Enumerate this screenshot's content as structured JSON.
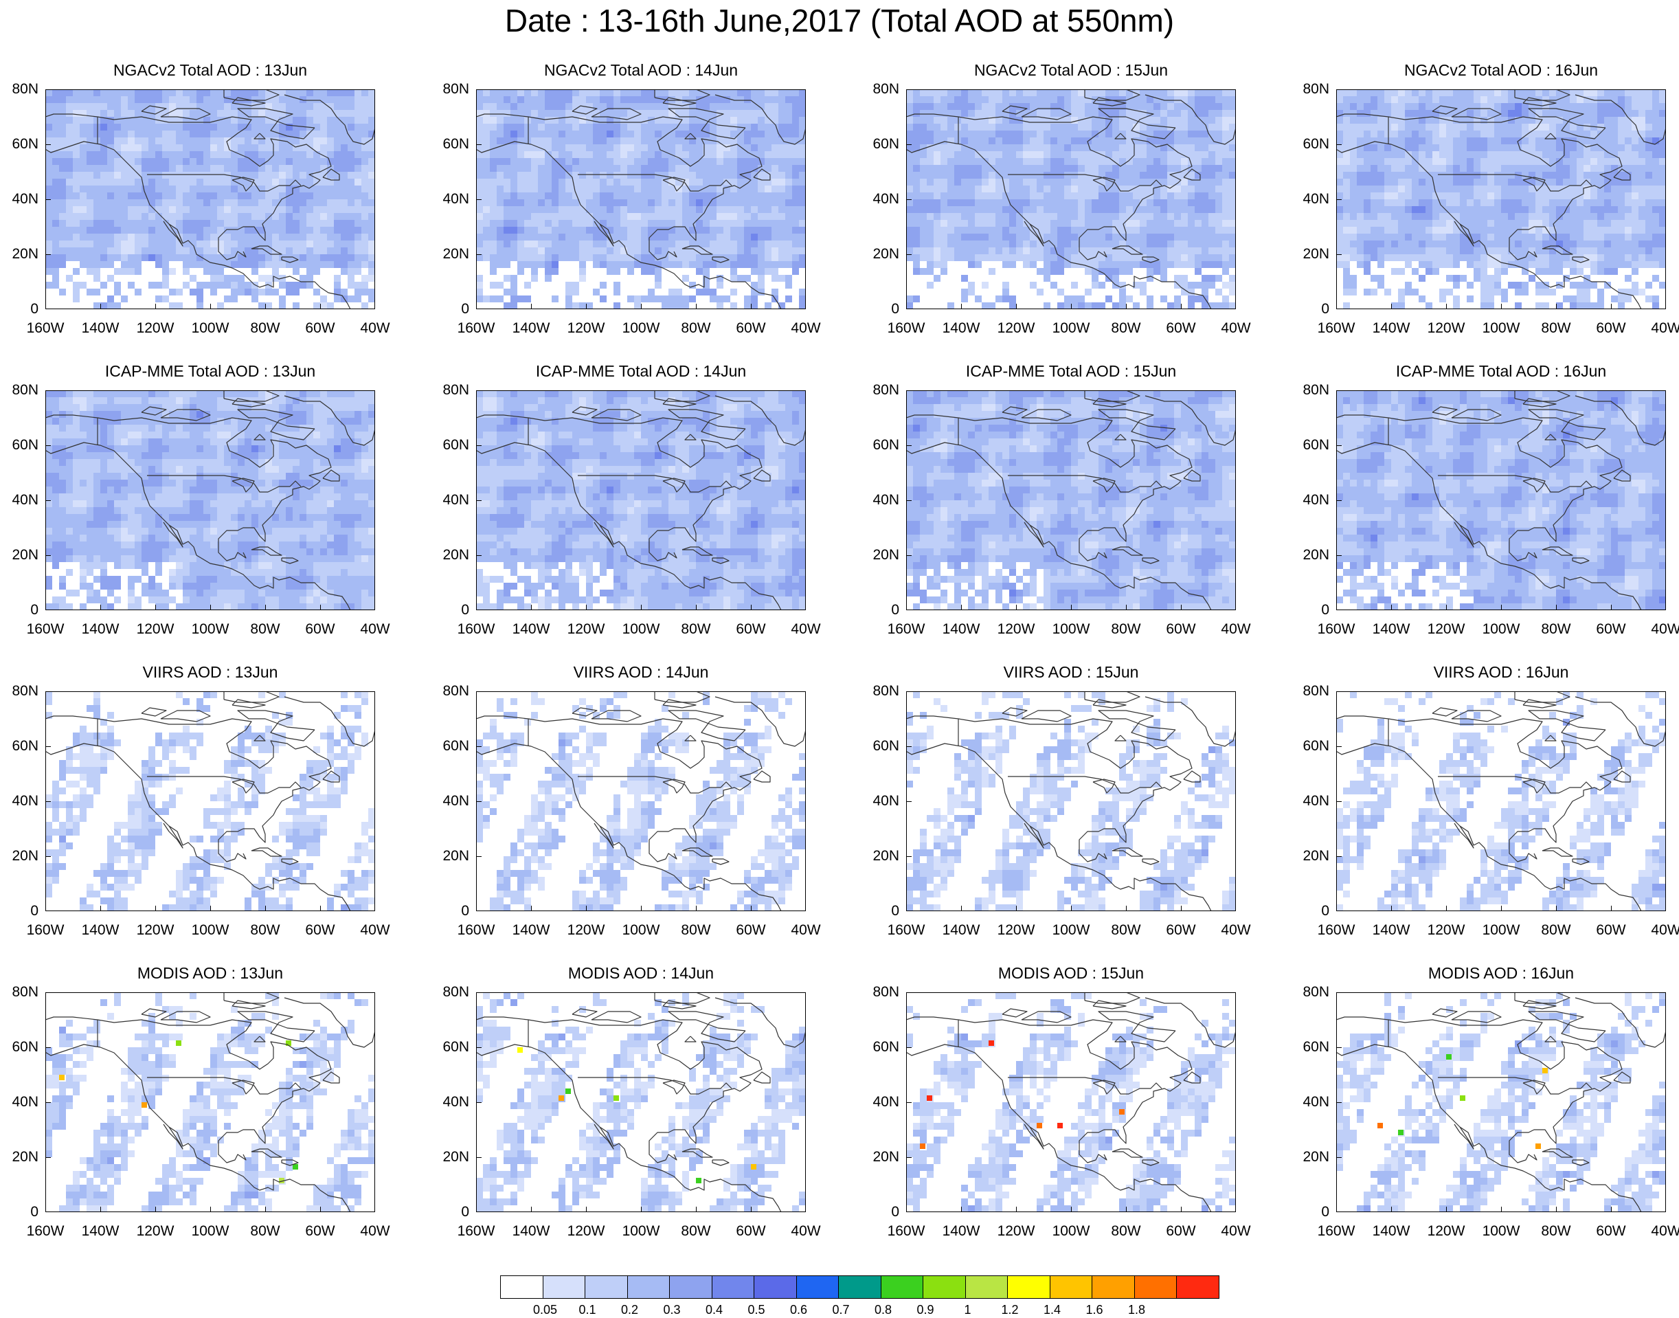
{
  "title": "Date : 13-16th June,2017 (Total AOD at 550nm)",
  "axes": {
    "lat_labels": [
      "0",
      "20N",
      "40N",
      "60N",
      "80N"
    ],
    "lon_labels": [
      "160W",
      "140W",
      "120W",
      "100W",
      "80W",
      "60W",
      "40W"
    ],
    "lat_range": [
      0,
      80
    ],
    "lon_range": [
      -160,
      -40
    ]
  },
  "rows": [
    {
      "product": "NGACv2 Total AOD",
      "field": "model",
      "coverage": "full",
      "base_level": 3
    },
    {
      "product": "ICAP-MME Total AOD",
      "field": "model",
      "coverage": "full",
      "base_level": 3
    },
    {
      "product": "VIIRS AOD",
      "field": "satellite",
      "coverage": "swaths",
      "base_level": 2
    },
    {
      "product": "MODIS AOD",
      "field": "satellite",
      "coverage": "swaths",
      "base_level": 2
    }
  ],
  "panels": [
    {
      "title": "NGACv2 Total AOD : 13Jun",
      "row": 0,
      "col": 0
    },
    {
      "title": "NGACv2 Total AOD : 14Jun",
      "row": 0,
      "col": 1
    },
    {
      "title": "NGACv2 Total AOD : 15Jun",
      "row": 0,
      "col": 2
    },
    {
      "title": "NGACv2 Total AOD : 16Jun",
      "row": 0,
      "col": 3
    },
    {
      "title": "ICAP-MME Total AOD : 13Jun",
      "row": 1,
      "col": 0
    },
    {
      "title": "ICAP-MME Total AOD : 14Jun",
      "row": 1,
      "col": 1
    },
    {
      "title": "ICAP-MME Total AOD : 15Jun",
      "row": 1,
      "col": 2
    },
    {
      "title": "ICAP-MME Total AOD : 16Jun",
      "row": 1,
      "col": 3
    },
    {
      "title": "VIIRS AOD : 13Jun",
      "row": 2,
      "col": 0
    },
    {
      "title": "VIIRS AOD : 14Jun",
      "row": 2,
      "col": 1
    },
    {
      "title": "VIIRS AOD : 15Jun",
      "row": 2,
      "col": 2
    },
    {
      "title": "VIIRS AOD : 16Jun",
      "row": 2,
      "col": 3
    },
    {
      "title": "MODIS AOD : 13Jun",
      "row": 3,
      "col": 0
    },
    {
      "title": "MODIS AOD : 14Jun",
      "row": 3,
      "col": 1
    },
    {
      "title": "MODIS AOD : 15Jun",
      "row": 3,
      "col": 2
    },
    {
      "title": "MODIS AOD : 16Jun",
      "row": 3,
      "col": 3
    }
  ],
  "colorbar": {
    "colors": [
      "#ffffff",
      "#d6e0fb",
      "#bfcff8",
      "#a6bbf4",
      "#8ea3ef",
      "#7186ec",
      "#5b6ae8",
      "#1f66f2",
      "#009a8a",
      "#3bd01f",
      "#8be010",
      "#b9e544",
      "#ffff00",
      "#ffc400",
      "#ffa000",
      "#ff7000",
      "#ff2a10"
    ],
    "labels": [
      "0.05",
      "0.1",
      "0.2",
      "0.3",
      "0.4",
      "0.5",
      "0.6",
      "0.7",
      "0.8",
      "0.9",
      "1",
      "1.2",
      "1.4",
      "1.6",
      "1.8"
    ]
  },
  "coastline": {
    "north_america": [
      [
        -168,
        66
      ],
      [
        -163,
        60
      ],
      [
        -158,
        57
      ],
      [
        -152,
        59
      ],
      [
        -146,
        61
      ],
      [
        -140,
        60
      ],
      [
        -135,
        58
      ],
      [
        -132,
        55
      ],
      [
        -128,
        51
      ],
      [
        -125,
        48
      ],
      [
        -124,
        43
      ],
      [
        -122,
        38
      ],
      [
        -118,
        34
      ],
      [
        -115,
        31
      ],
      [
        -112,
        29
      ],
      [
        -110,
        24
      ],
      [
        -108,
        25
      ],
      [
        -106,
        23
      ],
      [
        -105,
        20
      ],
      [
        -100,
        17
      ],
      [
        -95,
        16
      ],
      [
        -92,
        15
      ],
      [
        -88,
        13
      ],
      [
        -86,
        11
      ],
      [
        -84,
        9
      ],
      [
        -82,
        8
      ],
      [
        -79,
        9
      ],
      [
        -77,
        8
      ],
      [
        -77,
        12
      ],
      [
        -75,
        11
      ],
      [
        -71,
        12
      ],
      [
        -67,
        10
      ],
      [
        -62,
        10
      ],
      [
        -60,
        8
      ],
      [
        -57,
        6
      ],
      [
        -52,
        5
      ],
      [
        -50,
        2
      ],
      [
        -49,
        0
      ]
    ],
    "gulf_atlantic": [
      [
        -88,
        21
      ],
      [
        -87,
        19
      ],
      [
        -90,
        21
      ],
      [
        -91,
        19
      ],
      [
        -94,
        18
      ],
      [
        -97,
        21
      ],
      [
        -97,
        26
      ],
      [
        -94,
        29
      ],
      [
        -90,
        29
      ],
      [
        -88,
        30
      ],
      [
        -84,
        30
      ],
      [
        -82,
        27
      ],
      [
        -80,
        25
      ],
      [
        -80,
        28
      ],
      [
        -81,
        31
      ],
      [
        -77,
        35
      ],
      [
        -76,
        37
      ],
      [
        -74,
        40
      ],
      [
        -70,
        42
      ],
      [
        -70,
        44
      ],
      [
        -66,
        45
      ],
      [
        -64,
        44
      ],
      [
        -61,
        46
      ],
      [
        -60,
        47
      ],
      [
        -64,
        49
      ],
      [
        -60,
        50
      ],
      [
        -56,
        52
      ],
      [
        -57,
        55
      ],
      [
        -61,
        57
      ],
      [
        -65,
        60
      ],
      [
        -69,
        59
      ],
      [
        -72,
        61
      ],
      [
        -78,
        62
      ],
      [
        -77,
        60
      ],
      [
        -77,
        56
      ],
      [
        -79,
        54
      ],
      [
        -82,
        52
      ],
      [
        -86,
        55
      ],
      [
        -93,
        58
      ],
      [
        -94,
        61
      ],
      [
        -90,
        64
      ],
      [
        -87,
        66
      ],
      [
        -85,
        69
      ],
      [
        -92,
        70
      ],
      [
        -100,
        68
      ],
      [
        -108,
        68
      ],
      [
        -115,
        68
      ],
      [
        -125,
        70
      ],
      [
        -135,
        69
      ],
      [
        -141,
        70
      ],
      [
        -150,
        71
      ],
      [
        -157,
        71
      ],
      [
        -163,
        69
      ],
      [
        -166,
        68
      ]
    ],
    "greenland": [
      [
        -73,
        78
      ],
      [
        -66,
        76
      ],
      [
        -60,
        76
      ],
      [
        -56,
        73
      ],
      [
        -54,
        70
      ],
      [
        -51,
        67
      ],
      [
        -50,
        64
      ],
      [
        -48,
        61
      ],
      [
        -44,
        60
      ],
      [
        -41,
        62
      ],
      [
        -40,
        66
      ],
      [
        -36,
        66
      ],
      [
        -31,
        68
      ]
    ],
    "cuba": [
      [
        -85,
        22
      ],
      [
        -82,
        23
      ],
      [
        -79,
        23
      ],
      [
        -76,
        21
      ],
      [
        -74,
        20
      ],
      [
        -78,
        20
      ],
      [
        -81,
        22
      ],
      [
        -85,
        22
      ]
    ],
    "hispaniola": [
      [
        -74,
        19
      ],
      [
        -70,
        19
      ],
      [
        -68,
        18
      ],
      [
        -71,
        17
      ],
      [
        -74,
        18
      ],
      [
        -74,
        19
      ]
    ],
    "baja": [
      [
        -117,
        32
      ],
      [
        -115,
        29
      ],
      [
        -112,
        26
      ],
      [
        -110,
        23
      ],
      [
        -111,
        25
      ],
      [
        -113,
        28
      ],
      [
        -115,
        31
      ]
    ],
    "newfoundland": [
      [
        -59,
        48
      ],
      [
        -56,
        51
      ],
      [
        -53,
        49
      ],
      [
        -53,
        47
      ],
      [
        -56,
        47
      ],
      [
        -59,
        48
      ]
    ],
    "baffin": [
      [
        -62,
        66
      ],
      [
        -66,
        62
      ],
      [
        -72,
        63
      ],
      [
        -78,
        65
      ],
      [
        -75,
        69
      ],
      [
        -70,
        71
      ],
      [
        -80,
        73
      ],
      [
        -90,
        73
      ],
      [
        -86,
        70
      ],
      [
        -80,
        70
      ],
      [
        -72,
        67
      ],
      [
        -62,
        66
      ]
    ],
    "victoria": [
      [
        -118,
        70
      ],
      [
        -112,
        70
      ],
      [
        -105,
        69
      ],
      [
        -100,
        71
      ],
      [
        -104,
        73
      ],
      [
        -112,
        73
      ],
      [
        -118,
        70
      ]
    ],
    "ellesmere": [
      [
        -95,
        77
      ],
      [
        -90,
        76
      ],
      [
        -80,
        76
      ],
      [
        -75,
        78
      ],
      [
        -80,
        80
      ],
      [
        -95,
        80
      ],
      [
        -95,
        77
      ]
    ],
    "banks": [
      [
        -125,
        72
      ],
      [
        -120,
        71
      ],
      [
        -116,
        73
      ],
      [
        -122,
        74
      ],
      [
        -125,
        72
      ]
    ],
    "devon": [
      [
        -92,
        75
      ],
      [
        -85,
        74
      ],
      [
        -80,
        75
      ],
      [
        -90,
        77
      ],
      [
        -92,
        75
      ]
    ],
    "us_canada_border": [
      [
        -123,
        49
      ],
      [
        -110,
        49
      ],
      [
        -95,
        49
      ],
      [
        -89,
        48
      ],
      [
        -84,
        46
      ],
      [
        -82,
        43
      ],
      [
        -79,
        43
      ],
      [
        -75,
        45
      ],
      [
        -71,
        45
      ],
      [
        -69,
        47
      ],
      [
        -67,
        45
      ]
    ],
    "alaska_border": [
      [
        -141,
        70
      ],
      [
        -141,
        60
      ]
    ],
    "great_lakes": [
      [
        -92,
        47
      ],
      [
        -88,
        48
      ],
      [
        -84,
        47
      ],
      [
        -85,
        45
      ],
      [
        -87,
        43
      ],
      [
        -88,
        45
      ],
      [
        -92,
        47
      ]
    ],
    "hudson_islands": [
      [
        -82,
        64
      ],
      [
        -80,
        62
      ],
      [
        -84,
        62
      ],
      [
        -82,
        64
      ]
    ]
  }
}
